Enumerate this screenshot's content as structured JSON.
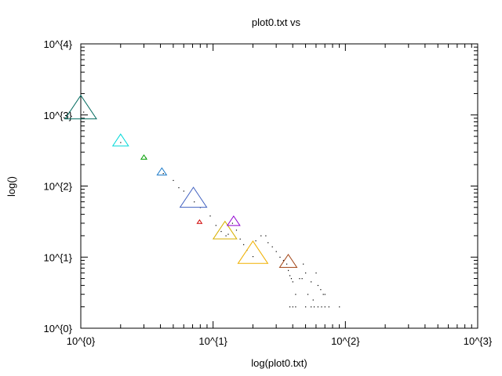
{
  "chart_data": {
    "type": "scatter",
    "title": "plot0.txt vs",
    "xlabel": "log(plot0.txt)",
    "ylabel": "log()",
    "xscale": "log",
    "yscale": "log",
    "xlim": [
      1,
      1000
    ],
    "ylim": [
      1,
      10000
    ],
    "grid": false,
    "legend": "none",
    "x_ticks": [
      {
        "value": 1,
        "label": "10^{0}"
      },
      {
        "value": 10,
        "label": "10^{1}"
      },
      {
        "value": 100,
        "label": "10^{2}"
      },
      {
        "value": 1000,
        "label": "10^{3}"
      }
    ],
    "y_ticks": [
      {
        "value": 1,
        "label": "10^{0}"
      },
      {
        "value": 10,
        "label": "10^{1}"
      },
      {
        "value": 100,
        "label": "10^{2}"
      },
      {
        "value": 1000,
        "label": "10^{3}"
      },
      {
        "value": 10000,
        "label": "10^{4}"
      }
    ],
    "triangles": [
      {
        "x": 1.0,
        "y": 1150,
        "color": "#006a5e",
        "scale": 1.0
      },
      {
        "x": 2.0,
        "y": 420,
        "color": "#00d8d8",
        "scale": 0.5
      },
      {
        "x": 3.0,
        "y": 250,
        "color": "#00a000",
        "scale": 0.18
      },
      {
        "x": 4.1,
        "y": 155,
        "color": "#1878c8",
        "scale": 0.3
      },
      {
        "x": 7.1,
        "y": 63,
        "color": "#4060c0",
        "scale": 0.85
      },
      {
        "x": 7.9,
        "y": 31,
        "color": "#d00000",
        "scale": 0.15
      },
      {
        "x": 12.3,
        "y": 22,
        "color": "#d8b000",
        "scale": 0.75
      },
      {
        "x": 14.3,
        "y": 31,
        "color": "#9000d0",
        "scale": 0.4
      },
      {
        "x": 20.0,
        "y": 10.5,
        "color": "#f0b000",
        "scale": 0.95
      },
      {
        "x": 37.0,
        "y": 8.3,
        "color": "#a04010",
        "scale": 0.55
      }
    ],
    "points": [
      [
        1.05,
        1100
      ],
      [
        2.0,
        410
      ],
      [
        3.1,
        250
      ],
      [
        4.2,
        150
      ],
      [
        5.0,
        120
      ],
      [
        5.5,
        95
      ],
      [
        6.0,
        85
      ],
      [
        7.2,
        60
      ],
      [
        8.0,
        50
      ],
      [
        9.5,
        38
      ],
      [
        10.5,
        28
      ],
      [
        11.5,
        23
      ],
      [
        12.5,
        20
      ],
      [
        13.0,
        21
      ],
      [
        14.0,
        30
      ],
      [
        15.0,
        24
      ],
      [
        16.0,
        18
      ],
      [
        17.0,
        15
      ],
      [
        18.0,
        12.5
      ],
      [
        20.0,
        10.2
      ],
      [
        21.0,
        17
      ],
      [
        23.0,
        20
      ],
      [
        25.0,
        20
      ],
      [
        26.0,
        16
      ],
      [
        28.0,
        14
      ],
      [
        30.0,
        12
      ],
      [
        32.0,
        10
      ],
      [
        34.0,
        9
      ],
      [
        36.0,
        8
      ],
      [
        37.0,
        6.5
      ],
      [
        38.0,
        5.5
      ],
      [
        39.0,
        5
      ],
      [
        40.0,
        4.5
      ],
      [
        42.0,
        3
      ],
      [
        45.0,
        5
      ],
      [
        47.0,
        5
      ],
      [
        48.0,
        8
      ],
      [
        50.0,
        6
      ],
      [
        52.0,
        3
      ],
      [
        55.0,
        4.5
      ],
      [
        57.0,
        2.5
      ],
      [
        60.0,
        6
      ],
      [
        62.0,
        4
      ],
      [
        65.0,
        3.5
      ],
      [
        68.0,
        3
      ],
      [
        70.0,
        3
      ],
      [
        38.0,
        2
      ],
      [
        40.0,
        2
      ],
      [
        42.0,
        2
      ],
      [
        50.0,
        2
      ],
      [
        55.0,
        2
      ],
      [
        58.0,
        2
      ],
      [
        62.0,
        2
      ],
      [
        66.0,
        2
      ],
      [
        70.0,
        2
      ],
      [
        75.0,
        2
      ],
      [
        90.0,
        2
      ]
    ]
  }
}
